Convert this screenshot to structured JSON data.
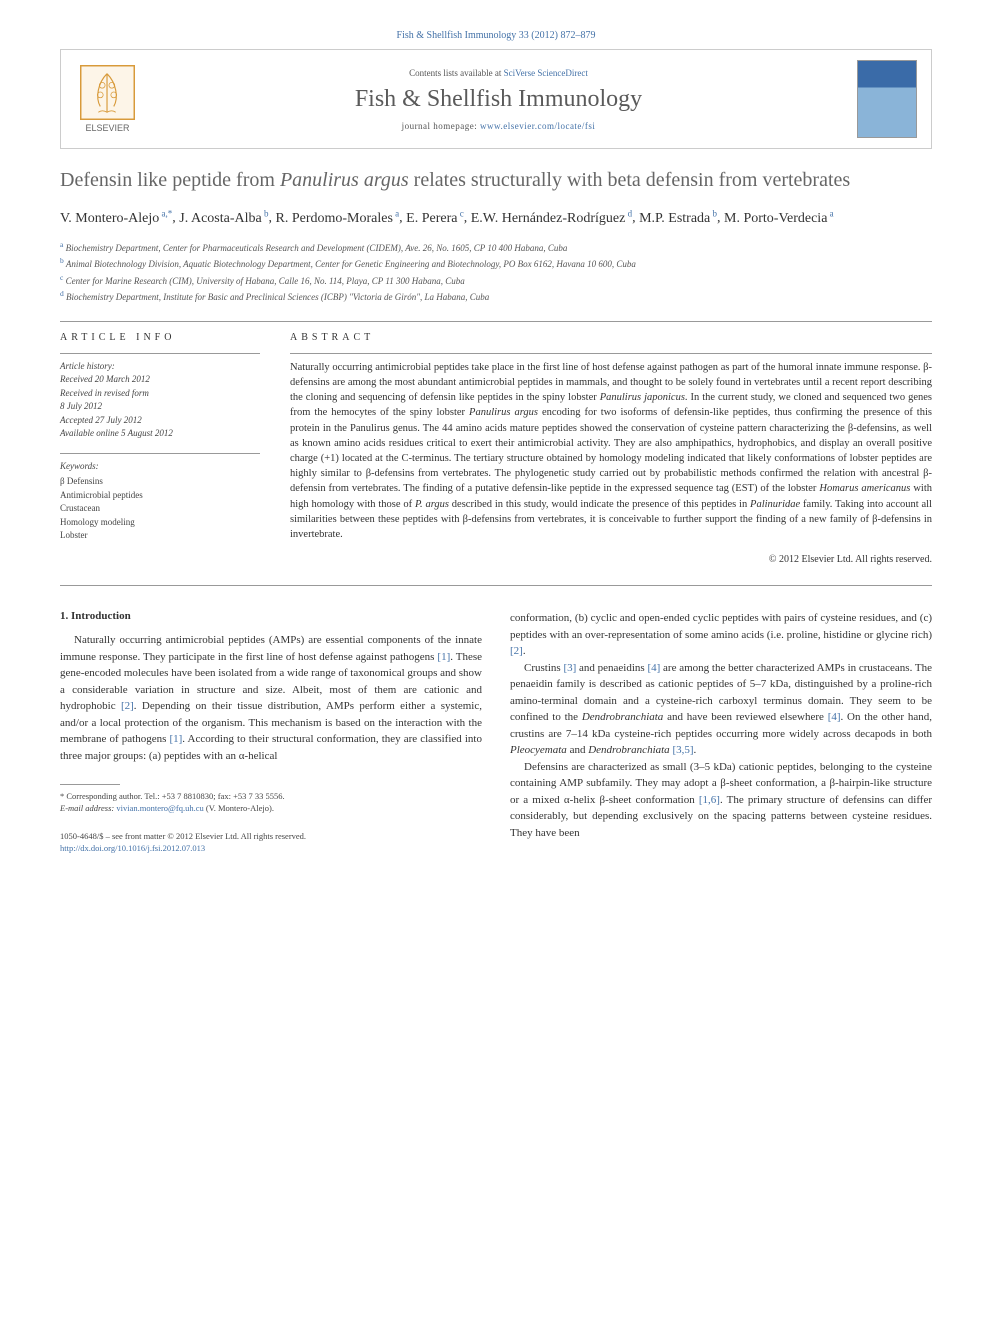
{
  "citation": "Fish & Shellfish Immunology 33 (2012) 872–879",
  "header": {
    "contents_text": "Contents lists available at ",
    "contents_link": "SciVerse ScienceDirect",
    "journal_name": "Fish & Shellfish Immunology",
    "homepage_label": "journal homepage: ",
    "homepage_url": "www.elsevier.com/locate/fsi",
    "publisher": "ELSEVIER"
  },
  "title_pre": "Defensin like peptide from ",
  "title_italic": "Panulirus argus",
  "title_post": " relates structurally with beta defensin from vertebrates",
  "authors_html": "V. Montero-Alejo",
  "authors": [
    {
      "name": "V. Montero-Alejo",
      "sup": "a,*"
    },
    {
      "name": "J. Acosta-Alba",
      "sup": "b"
    },
    {
      "name": "R. Perdomo-Morales",
      "sup": "a"
    },
    {
      "name": "E. Perera",
      "sup": "c"
    },
    {
      "name": "E.W. Hernández-Rodríguez",
      "sup": "d"
    },
    {
      "name": "M.P. Estrada",
      "sup": "b"
    },
    {
      "name": "M. Porto-Verdecia",
      "sup": "a"
    }
  ],
  "affiliations": [
    {
      "sup": "a",
      "text": "Biochemistry Department, Center for Pharmaceuticals Research and Development (CIDEM), Ave. 26, No. 1605, CP 10 400 Habana, Cuba"
    },
    {
      "sup": "b",
      "text": "Animal Biotechnology Division, Aquatic Biotechnology Department, Center for Genetic Engineering and Biotechnology, PO Box 6162, Havana 10 600, Cuba"
    },
    {
      "sup": "c",
      "text": "Center for Marine Research (CIM), University of Habana, Calle 16, No. 114, Playa, CP 11 300 Habana, Cuba"
    },
    {
      "sup": "d",
      "text": "Biochemistry Department, Institute for Basic and Preclinical Sciences (ICBP) \"Victoria de Girón\", La Habana, Cuba"
    }
  ],
  "article_info_heading": "ARTICLE INFO",
  "abstract_heading": "ABSTRACT",
  "history": {
    "label": "Article history:",
    "received": "Received 20 March 2012",
    "revised": "Received in revised form",
    "revised_date": "8 July 2012",
    "accepted": "Accepted 27 July 2012",
    "online": "Available online 5 August 2012"
  },
  "keywords": {
    "label": "Keywords:",
    "items": [
      "β Defensins",
      "Antimicrobial peptides",
      "Crustacean",
      "Homology modeling",
      "Lobster"
    ]
  },
  "abstract": "Naturally occurring antimicrobial peptides take place in the first line of host defense against pathogen as part of the humoral innate immune response. β-defensins are among the most abundant antimicrobial peptides in mammals, and thought to be solely found in vertebrates until a recent report describing the cloning and sequencing of defensin like peptides in the spiny lobster Panulirus japonicus. In the current study, we cloned and sequenced two genes from the hemocytes of the spiny lobster Panulirus argus encoding for two isoforms of defensin-like peptides, thus confirming the presence of this protein in the Panulirus genus. The 44 amino acids mature peptides showed the conservation of cysteine pattern characterizing the β-defensins, as well as known amino acids residues critical to exert their antimicrobial activity. They are also amphipathics, hydrophobics, and display an overall positive charge (+1) located at the C-terminus. The tertiary structure obtained by homology modeling indicated that likely conformations of lobster peptides are highly similar to β-defensins from vertebrates. The phylogenetic study carried out by probabilistic methods confirmed the relation with ancestral β-defensin from vertebrates. The finding of a putative defensin-like peptide in the expressed sequence tag (EST) of the lobster Homarus americanus with high homology with those of P. argus described in this study, would indicate the presence of this peptides in Palinuridae family. Taking into account all similarities between these peptides with β-defensins from vertebrates, it is conceivable to further support the finding of a new family of β-defensins in invertebrate.",
  "copyright": "© 2012 Elsevier Ltd. All rights reserved.",
  "intro_heading": "1. Introduction",
  "intro_p1": "Naturally occurring antimicrobial peptides (AMPs) are essential components of the innate immune response. They participate in the first line of host defense against pathogens [1]. These gene-encoded molecules have been isolated from a wide range of taxonomical groups and show a considerable variation in structure and size. Albeit, most of them are cationic and hydrophobic [2]. Depending on their tissue distribution, AMPs perform either a systemic, and/or a local protection of the organism. This mechanism is based on the interaction with the membrane of pathogens [1]. According to their structural conformation, they are classified into three major groups: (a) peptides with an α-helical",
  "intro_p2": "conformation, (b) cyclic and open-ended cyclic peptides with pairs of cysteine residues, and (c) peptides with an over-representation of some amino acids (i.e. proline, histidine or glycine rich) [2].",
  "intro_p3": "Crustins [3] and penaeidins [4] are among the better characterized AMPs in crustaceans. The penaeidin family is described as cationic peptides of 5–7 kDa, distinguished by a proline-rich amino-terminal domain and a cysteine-rich carboxyl terminus domain. They seem to be confined to the Dendrobranchiata and have been reviewed elsewhere [4]. On the other hand, crustins are 7–14 kDa cysteine-rich peptides occurring more widely across decapods in both Pleocyemata and Dendrobranchiata [3,5].",
  "intro_p4": "Defensins are characterized as small (3–5 kDa) cationic peptides, belonging to the cysteine containing AMP subfamily. They may adopt a β-sheet conformation, a β-hairpin-like structure or a mixed α-helix β-sheet conformation [1,6]. The primary structure of defensins can differ considerably, but depending exclusively on the spacing patterns between cysteine residues. They have been",
  "footnote": {
    "corresponding": "* Corresponding author. Tel.: +53 7 8810830; fax: +53 7 33 5556.",
    "email_label": "E-mail address: ",
    "email": "vivian.montero@fq.uh.cu",
    "email_suffix": " (V. Montero-Alejo)."
  },
  "bottom": {
    "issn": "1050-4648/$ – see front matter © 2012 Elsevier Ltd. All rights reserved.",
    "doi_label": "http://dx.doi.org/",
    "doi": "10.1016/j.fsi.2012.07.013"
  },
  "colors": {
    "link": "#4472a8",
    "text": "#333333",
    "title_gray": "#666666",
    "border": "#cccccc",
    "elsevier_orange": "#d89a3a"
  }
}
